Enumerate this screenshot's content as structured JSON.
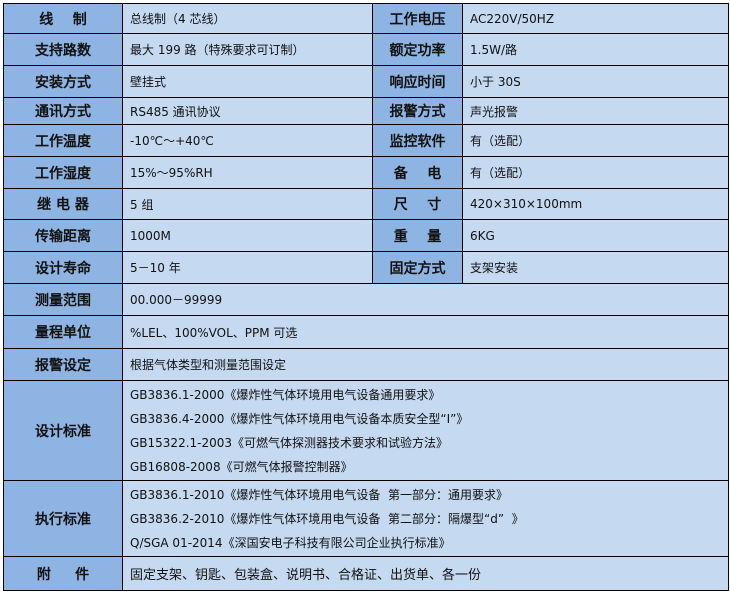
{
  "rows": [
    {
      "l1": "线    制",
      "v1": "总线制（4 芯线）",
      "l2": "工作电压",
      "v2": "AC220V/50HZ"
    },
    {
      "l1": "支持路数",
      "v1": "最大 199 路（特殊要求可订制）",
      "l2": "额定功率",
      "v2": "1.5W/路"
    },
    {
      "l1": "安装方式",
      "v1": "壁挂式",
      "l2": "响应时间",
      "v2": "小于 30S"
    },
    {
      "l1": "通讯方式",
      "v1": "RS485 通讯协议",
      "l2": "报警方式",
      "v2": "声光报警"
    },
    {
      "l1": "工作温度",
      "v1": "-10℃～+40℃",
      "l2": "监控软件",
      "v2": "有（选配）"
    },
    {
      "l1": "工作湿度",
      "v1": "15%～95%RH",
      "l2": "备    电",
      "v2": "有（选配）"
    },
    {
      "l1": "继 电 器",
      "v1": "5 组",
      "l2": "尺    寸",
      "v2": "420×310×100mm"
    },
    {
      "l1": "传输距离",
      "v1": "1000M",
      "l2": "重    量",
      "v2": "6KG"
    },
    {
      "l1": "设计寿命",
      "v1": "5－10 年",
      "l2": "固定方式",
      "v2": "支架安装"
    }
  ],
  "wide": [
    {
      "l": "测量范围",
      "v": "00.000－99999"
    },
    {
      "l": "量程单位",
      "v": "%LEL、100%VOL、PPM 可选"
    },
    {
      "l": "报警设定",
      "v": "根据气体类型和测量范围设定"
    }
  ],
  "design": {
    "l": "设计标准",
    "lines": [
      "GB3836.1-2000《爆炸性气体环境用电气设备通用要求》",
      "GB3836.4-2000《爆炸性气体环境用电气设备本质安全型“Ι”》",
      "GB15322.1-2003《可燃气体探测器技术要求和试验方法》",
      "GB16808-2008《可燃气体报警控制器》"
    ]
  },
  "exec": {
    "l": "执行标准",
    "lines": [
      "GB3836.1-2010《爆炸性气体环境用电气设备  第一部分：通用要求》",
      "GB3836.2-2010《爆炸性气体环境用电气设备  第二部分：隔爆型“d”  》",
      "Q/SGA 01-2014《深国安电子科技有限公司企业执行标准》"
    ]
  },
  "attach": {
    "l": "附     件",
    "v": "固定支架、钥匙、包装盒、说明书、合格证、出货单、各一份"
  }
}
